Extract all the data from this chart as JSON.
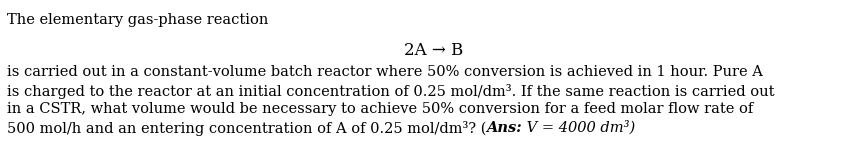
{
  "line1": "The elementary gas-phase reaction",
  "reaction": "2A → B",
  "body_line1": "is carried out in a constant-volume batch reactor where 50% conversion is achieved in 1 hour. Pure A",
  "body_line2": "is charged to the reactor at an initial concentration of 0.25 mol/dm³. If the same reaction is carried out",
  "body_line3": "in a CSTR, what volume would be necessary to achieve 50% conversion for a feed molar flow rate of",
  "body_line4_prefix": "500 mol/h and an entering concentration of A of 0.25 mol/dm³? (",
  "body_line4_bold": "Ans:",
  "body_line4_normal": " V = 4000 dm³)",
  "bg_color": "#ffffff",
  "text_color": "#000000",
  "font_size_body": 10.5,
  "font_size_reaction": 12.0,
  "fig_width": 8.67,
  "fig_height": 1.6,
  "dpi": 100
}
